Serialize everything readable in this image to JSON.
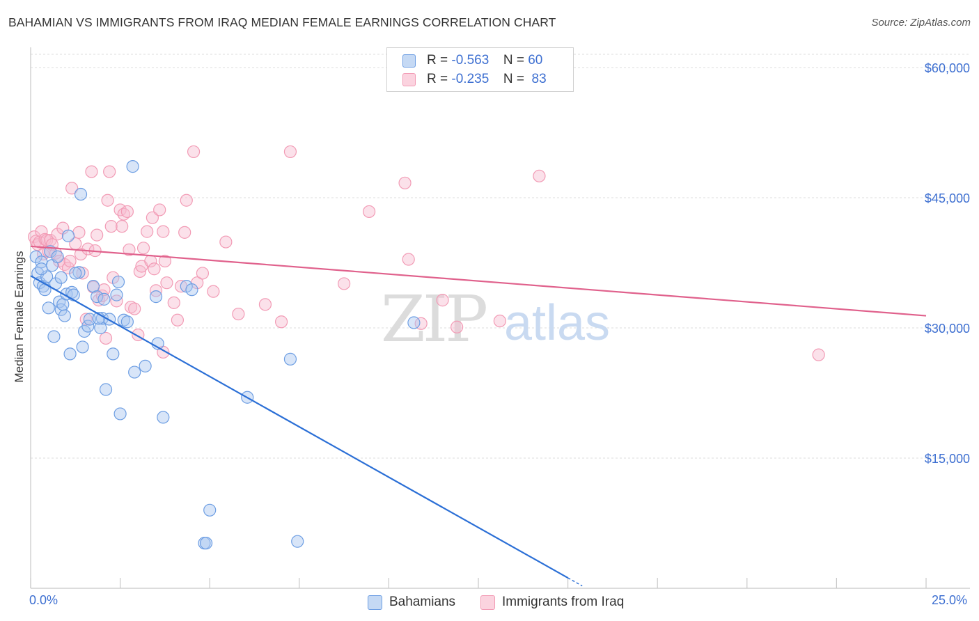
{
  "title": "BAHAMIAN VS IMMIGRANTS FROM IRAQ MEDIAN FEMALE EARNINGS CORRELATION CHART",
  "source": "Source: ZipAtlas.com",
  "watermark": {
    "zip": "ZIP",
    "atlas": "atlas"
  },
  "legend": {
    "r_label": "R =",
    "n_label": "N =",
    "rows": [
      {
        "r": "-0.563",
        "n": "60"
      },
      {
        "r": "-0.235",
        "n": "83"
      }
    ]
  },
  "bottom_legend": [
    "Bahamians",
    "Immigrants from Iraq"
  ],
  "x_axis": {
    "min_label": "0.0%",
    "max_label": "25.0%"
  },
  "chart_data": {
    "type": "scatter",
    "title": "BAHAMIAN VS IMMIGRANTS FROM IRAQ MEDIAN FEMALE EARNINGS CORRELATION CHART",
    "xlabel": "",
    "ylabel": "Median Female Earnings",
    "xlim": [
      0,
      25
    ],
    "ylim": [
      0,
      63000
    ],
    "yticks": [
      15000,
      30000,
      45000,
      60000
    ],
    "ytick_labels": [
      "$15,000",
      "$30,000",
      "$45,000",
      "$60,000"
    ],
    "grid": true,
    "colors": {
      "bahamians": "#6d9ee3",
      "iraq": "#f29bb5",
      "blue_line": "#2b6fd6",
      "pink_line": "#e0618c",
      "axis_text": "#3d6fd1"
    },
    "series": [
      {
        "name": "Bahamians",
        "points": [
          [
            0.15,
            38200
          ],
          [
            0.2,
            36300
          ],
          [
            0.25,
            35200
          ],
          [
            0.3,
            37600
          ],
          [
            0.35,
            34800
          ],
          [
            0.4,
            34400
          ],
          [
            0.45,
            35900
          ],
          [
            0.5,
            32300
          ],
          [
            0.55,
            38800
          ],
          [
            0.6,
            37200
          ],
          [
            0.65,
            29000
          ],
          [
            0.7,
            35100
          ],
          [
            0.8,
            33000
          ],
          [
            0.85,
            32100
          ],
          [
            0.85,
            35800
          ],
          [
            0.9,
            32700
          ],
          [
            0.95,
            31400
          ],
          [
            1.0,
            33900
          ],
          [
            1.05,
            40600
          ],
          [
            1.1,
            27000
          ],
          [
            1.15,
            34100
          ],
          [
            1.2,
            33800
          ],
          [
            1.35,
            36400
          ],
          [
            1.4,
            45400
          ],
          [
            1.45,
            27800
          ],
          [
            1.5,
            29600
          ],
          [
            1.6,
            30200
          ],
          [
            1.65,
            31000
          ],
          [
            1.75,
            34800
          ],
          [
            1.85,
            33600
          ],
          [
            1.95,
            30000
          ],
          [
            2.0,
            31100
          ],
          [
            2.05,
            33300
          ],
          [
            2.1,
            22900
          ],
          [
            2.2,
            31000
          ],
          [
            2.3,
            27000
          ],
          [
            2.4,
            33800
          ],
          [
            2.45,
            35300
          ],
          [
            2.5,
            20100
          ],
          [
            2.6,
            30900
          ],
          [
            2.7,
            30700
          ],
          [
            2.85,
            48600
          ],
          [
            2.9,
            24900
          ],
          [
            3.2,
            25600
          ],
          [
            3.5,
            33600
          ],
          [
            3.55,
            28200
          ],
          [
            3.7,
            19700
          ],
          [
            4.35,
            34800
          ],
          [
            4.5,
            34400
          ],
          [
            4.85,
            5200
          ],
          [
            4.9,
            5200
          ],
          [
            5.0,
            9000
          ],
          [
            6.05,
            22000
          ],
          [
            7.25,
            26400
          ],
          [
            7.45,
            5400
          ],
          [
            10.7,
            30600
          ],
          [
            0.3,
            36800
          ],
          [
            1.25,
            36300
          ],
          [
            1.9,
            31100
          ],
          [
            0.75,
            38200
          ]
        ]
      },
      {
        "name": "Immigrants from Iraq",
        "points": [
          [
            0.1,
            40500
          ],
          [
            0.15,
            40000
          ],
          [
            0.2,
            39600
          ],
          [
            0.25,
            39900
          ],
          [
            0.3,
            41100
          ],
          [
            0.35,
            38500
          ],
          [
            0.4,
            40200
          ],
          [
            0.45,
            40100
          ],
          [
            0.5,
            38800
          ],
          [
            0.55,
            40100
          ],
          [
            0.6,
            39600
          ],
          [
            0.7,
            38600
          ],
          [
            0.75,
            40800
          ],
          [
            0.8,
            37700
          ],
          [
            0.9,
            41500
          ],
          [
            0.95,
            37300
          ],
          [
            1.05,
            36900
          ],
          [
            1.1,
            37700
          ],
          [
            1.15,
            46100
          ],
          [
            1.25,
            39700
          ],
          [
            1.35,
            41000
          ],
          [
            1.4,
            38500
          ],
          [
            1.45,
            36300
          ],
          [
            1.55,
            31000
          ],
          [
            1.6,
            39100
          ],
          [
            1.7,
            48000
          ],
          [
            1.75,
            34700
          ],
          [
            1.8,
            38900
          ],
          [
            1.85,
            40700
          ],
          [
            1.9,
            33200
          ],
          [
            2.0,
            33700
          ],
          [
            2.05,
            34400
          ],
          [
            2.1,
            28800
          ],
          [
            2.15,
            44700
          ],
          [
            2.2,
            48000
          ],
          [
            2.25,
            41700
          ],
          [
            2.3,
            35800
          ],
          [
            2.4,
            33100
          ],
          [
            2.5,
            43600
          ],
          [
            2.55,
            41700
          ],
          [
            2.6,
            43100
          ],
          [
            2.7,
            43400
          ],
          [
            2.75,
            39000
          ],
          [
            2.8,
            32400
          ],
          [
            2.9,
            32200
          ],
          [
            3.0,
            29200
          ],
          [
            3.05,
            36500
          ],
          [
            3.1,
            37100
          ],
          [
            3.15,
            39200
          ],
          [
            3.25,
            41100
          ],
          [
            3.35,
            37700
          ],
          [
            3.4,
            42700
          ],
          [
            3.45,
            36800
          ],
          [
            3.5,
            34300
          ],
          [
            3.6,
            43600
          ],
          [
            3.7,
            41100
          ],
          [
            3.75,
            37700
          ],
          [
            3.8,
            35200
          ],
          [
            4.0,
            32900
          ],
          [
            4.2,
            34800
          ],
          [
            4.3,
            41000
          ],
          [
            4.35,
            44700
          ],
          [
            4.55,
            50300
          ],
          [
            4.65,
            35200
          ],
          [
            4.8,
            36300
          ],
          [
            5.1,
            34200
          ],
          [
            5.45,
            39900
          ],
          [
            5.8,
            31600
          ],
          [
            6.55,
            32700
          ],
          [
            7.0,
            30700
          ],
          [
            7.25,
            50300
          ],
          [
            8.75,
            35100
          ],
          [
            9.45,
            43400
          ],
          [
            10.45,
            46700
          ],
          [
            10.55,
            37900
          ],
          [
            10.9,
            30500
          ],
          [
            11.5,
            33200
          ],
          [
            11.9,
            30100
          ],
          [
            13.1,
            30800
          ],
          [
            14.2,
            47500
          ],
          [
            22.0,
            26900
          ],
          [
            4.1,
            30900
          ],
          [
            3.7,
            27200
          ]
        ]
      }
    ],
    "trend_lines": [
      {
        "name": "Bahamians",
        "x": [
          0,
          15
        ],
        "y": [
          36000,
          1200
        ],
        "dashed_extension_to_x": 15.4
      },
      {
        "name": "Immigrants from Iraq",
        "x": [
          0,
          25
        ],
        "y": [
          39400,
          31400
        ]
      }
    ]
  }
}
